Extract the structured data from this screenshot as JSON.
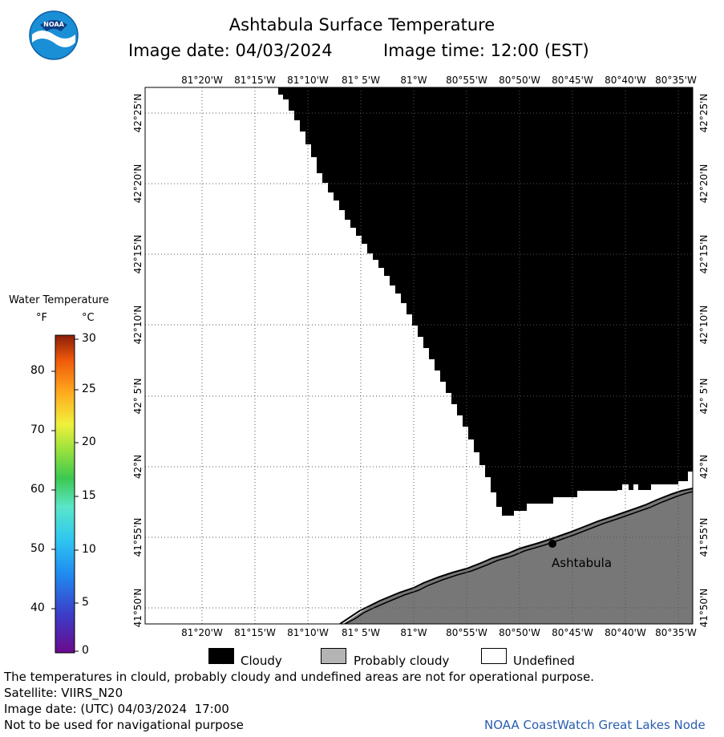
{
  "header": {
    "title": "Ashtabula Surface Temperature",
    "image_date": "Image date: 04/03/2024",
    "image_time": "Image time: 12:00 (EST)"
  },
  "logo": {
    "text": "NOAA"
  },
  "map": {
    "lon_labels": [
      "81°20'W",
      "81°15'W",
      "81°10'W",
      "81° 5'W",
      "81°W",
      "80°55'W",
      "80°50'W",
      "80°45'W",
      "80°40'W",
      "80°35'W"
    ],
    "lat_labels": [
      "42°25'N",
      "42°20'N",
      "42°15'N",
      "42°10'N",
      "42° 5'N",
      "42°N",
      "41°55'N",
      "41°50'N"
    ],
    "city_label": "Ashtabula",
    "colors": {
      "cloudy": "#000000",
      "probably_cloudy": "#777777",
      "undefined": "#ffffff",
      "grid": "#555555"
    }
  },
  "colorbar": {
    "title": "Water Temperature",
    "f_header": "°F",
    "c_header": "°C",
    "f_ticks": [
      "80",
      "70",
      "60",
      "50",
      "40"
    ],
    "c_ticks": [
      "30",
      "25",
      "20",
      "15",
      "10",
      "5",
      "0"
    ]
  },
  "legend": {
    "cloudy": "Cloudy",
    "probably_cloudy": "Probably cloudy",
    "undefined": "Undefined"
  },
  "footer": {
    "note": "The temperatures in clould, probably cloudy and undefined areas are not for operational purpose.",
    "satellite": "Satellite: VIIRS_N20",
    "utc_date": "Image date: (UTC) 04/03/2024  17:00",
    "warning": "Not to be used for navigational purpose",
    "credit": "NOAA CoastWatch Great Lakes Node"
  }
}
